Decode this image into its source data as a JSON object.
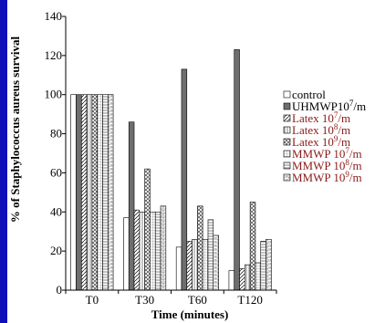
{
  "colors": {
    "background": "#1010b8",
    "panel": "#ffffff",
    "axis": "#000000",
    "legend_red": "#8b1a1a"
  },
  "chart_data": {
    "type": "bar",
    "title": "",
    "xlabel": "Time (minutes)",
    "ylabel": "% of Staphylococcus aureus survival",
    "categories": [
      "T0",
      "T30",
      "T60",
      "T120"
    ],
    "yticks": [
      "0",
      "20",
      "40",
      "60",
      "80",
      "100",
      "120",
      "140"
    ],
    "ylim": [
      0,
      140
    ],
    "legend_placement": "right",
    "series": [
      {
        "name": "control",
        "label_main": "control",
        "label_sup": "",
        "label_tail": "",
        "pattern": "white",
        "text_color": "#000000",
        "values": [
          100,
          37,
          22,
          10
        ]
      },
      {
        "name": "UHMWP10⁷/m",
        "label_main": "UHMWP10",
        "label_sup": "7",
        "label_tail": "/m",
        "pattern": "gray",
        "text_color": "#000000",
        "values": [
          100,
          86,
          113,
          123
        ]
      },
      {
        "name": "Latex 10⁷/m",
        "label_main": "Latex   10",
        "label_sup": "7",
        "label_tail": "/m",
        "pattern": "hatch",
        "text_color": "#8b1a1a",
        "values": [
          100,
          41,
          25,
          11
        ]
      },
      {
        "name": "Latex 10⁸/m",
        "label_main": "Latex   10",
        "label_sup": "8",
        "label_tail": "/m",
        "pattern": "vlines",
        "text_color": "#8b1a1a",
        "values": [
          100,
          40,
          26,
          13
        ]
      },
      {
        "name": "Latex 10⁹/m",
        "label_main": "Latex   10",
        "label_sup": "9",
        "label_tail": "/m",
        "pattern": "xgrid",
        "text_color": "#8b1a1a",
        "values": [
          100,
          62,
          43,
          45
        ]
      },
      {
        "name": "MMWP 10⁷/m",
        "label_main": "MMWP  10",
        "label_sup": "7",
        "label_tail": "/m",
        "pattern": "grid",
        "text_color": "#8b1a1a",
        "values": [
          100,
          40,
          26,
          14
        ]
      },
      {
        "name": "MMWP 10⁸/m",
        "label_main": "MMWP  10",
        "label_sup": "8",
        "label_tail": "/m",
        "pattern": "hstripe",
        "text_color": "#8b1a1a",
        "values": [
          100,
          40,
          36,
          25
        ]
      },
      {
        "name": "MMWP 10⁹/m",
        "label_main": "MMWP  10",
        "label_sup": "9",
        "label_tail": "/m",
        "pattern": "brick",
        "text_color": "#8b1a1a",
        "values": [
          100,
          43,
          28,
          26
        ]
      }
    ]
  }
}
